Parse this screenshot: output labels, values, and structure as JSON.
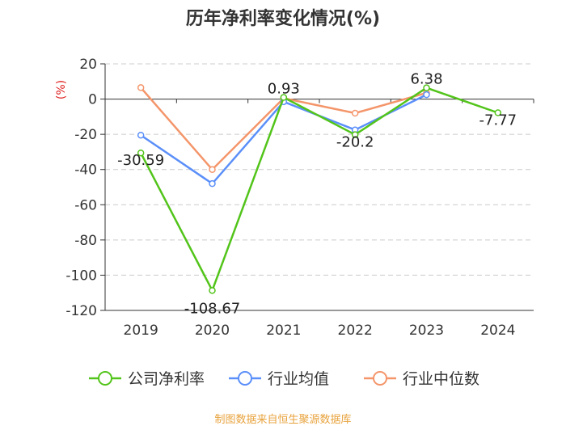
{
  "chart_data": {
    "type": "line",
    "title": "历年净利率变化情况(%)",
    "ylabel": "(%)",
    "xlabel": "",
    "categories": [
      "2019",
      "2020",
      "2021",
      "2022",
      "2023",
      "2024"
    ],
    "ylim": [
      -120,
      20
    ],
    "yticks": [
      20,
      0,
      -20,
      -40,
      -60,
      -80,
      -100,
      -120
    ],
    "grid": true,
    "legend_position": "bottom",
    "series": [
      {
        "name": "公司净利率",
        "color": "#52c41a",
        "values": [
          -30.59,
          -108.67,
          0.93,
          -20.2,
          6.38,
          -7.77
        ],
        "labels": [
          "-30.59",
          "-108.67",
          "0.93",
          "-20.2",
          "6.38",
          "-7.77"
        ]
      },
      {
        "name": "行业均值",
        "color": "#5b8ff9",
        "values": [
          -20.5,
          -48.0,
          -1.5,
          -17.5,
          2.5,
          null
        ]
      },
      {
        "name": "行业中位数",
        "color": "#f4956a",
        "values": [
          6.5,
          -40.0,
          0.5,
          -8.0,
          3.5,
          null
        ]
      }
    ]
  },
  "source": "制图数据来自恒生聚源数据库"
}
